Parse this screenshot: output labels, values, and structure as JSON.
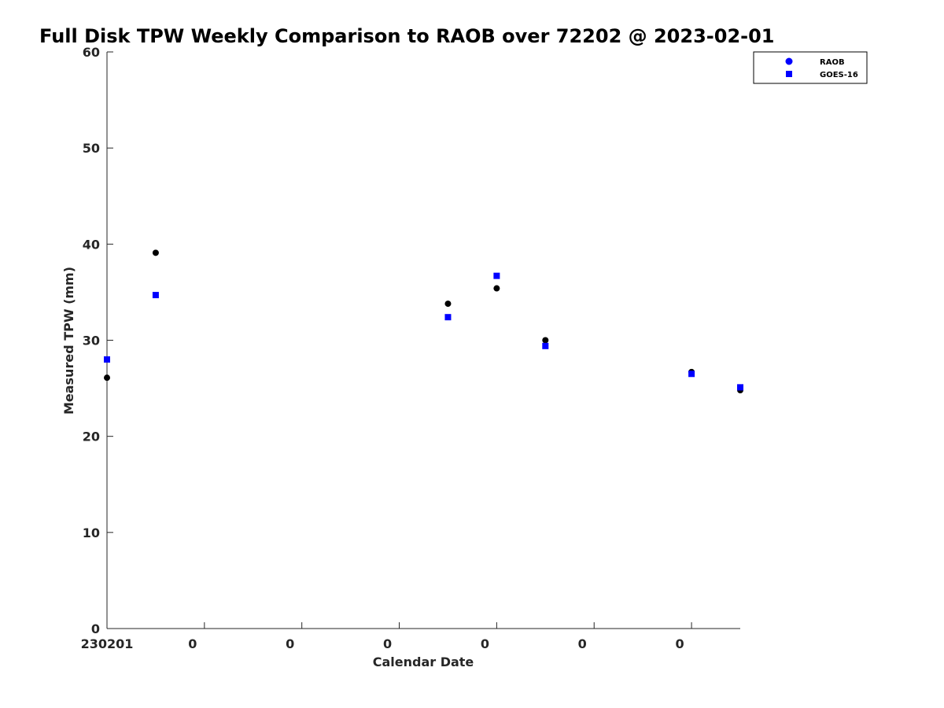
{
  "chart_data": {
    "type": "scatter",
    "title": "Full Disk TPW Weekly Comparison to RAOB over 72202 @ 2023-02-01",
    "xlabel": "Calendar Date",
    "ylabel": "Measured TPW (mm)",
    "xlim": [
      0,
      6.5
    ],
    "ylim": [
      0,
      60
    ],
    "x_ticks": [
      0,
      1,
      2,
      3,
      4,
      5,
      6
    ],
    "x_tick_labels": [
      "230201",
      "0",
      "0",
      "0",
      "0",
      "0",
      "0"
    ],
    "y_ticks": [
      0,
      10,
      20,
      30,
      40,
      50,
      60
    ],
    "y_tick_labels": [
      "0",
      "10",
      "20",
      "30",
      "40",
      "50",
      "60"
    ],
    "grid": false,
    "legend_position": "top-right",
    "series": [
      {
        "name": "RAOB",
        "marker": "circle",
        "color": "#000000",
        "legend_color": "#0000ff",
        "x": [
          0,
          0.5,
          3.5,
          4.0,
          4.5,
          6.0,
          6.5
        ],
        "y": [
          26.1,
          39.1,
          33.8,
          35.4,
          30.0,
          26.7,
          24.8
        ]
      },
      {
        "name": "GOES-16",
        "marker": "square",
        "color": "#0000ff",
        "legend_color": "#0000ff",
        "x": [
          0,
          0.5,
          3.5,
          4.0,
          4.5,
          6.0,
          6.5
        ],
        "y": [
          28.0,
          34.7,
          32.4,
          36.7,
          29.4,
          26.5,
          25.1
        ]
      }
    ]
  }
}
